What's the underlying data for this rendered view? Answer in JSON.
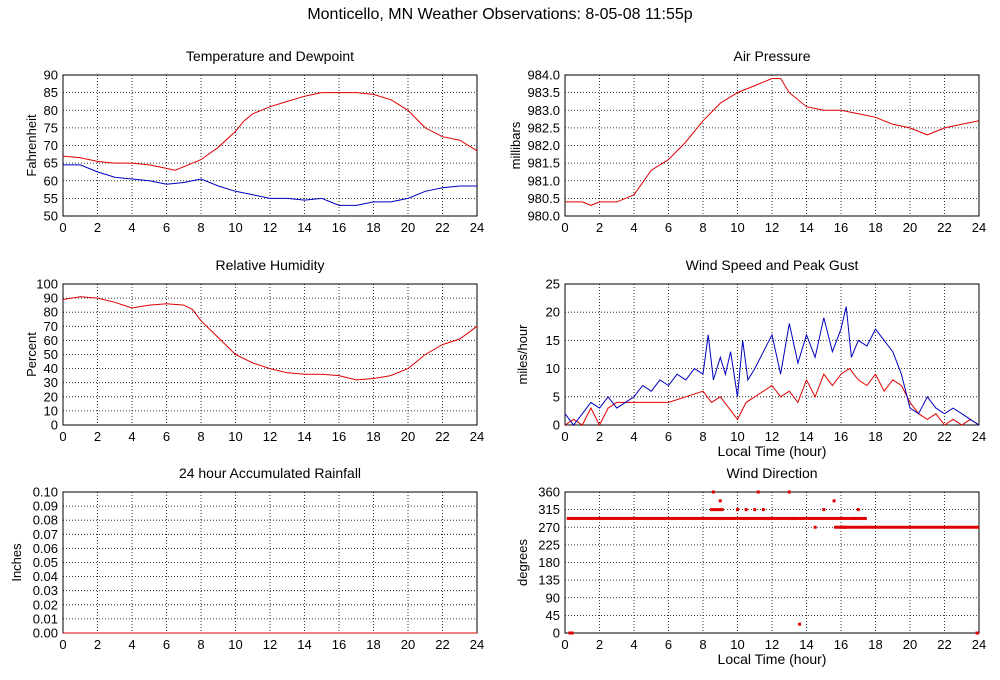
{
  "page": {
    "title": "Monticello, MN Weather Observations: 8-05-08 11:55p"
  },
  "colors": {
    "red": "#e00000",
    "blue": "#0000c0",
    "grid": "#000000"
  },
  "chart_data": [
    {
      "id": "temp",
      "type": "line",
      "title": "Temperature and Dewpoint",
      "xlabel": "",
      "ylabel": "Fahrenheit",
      "xlim": [
        0,
        24
      ],
      "ylim": [
        50,
        90
      ],
      "xticks": [
        0,
        2,
        4,
        6,
        8,
        10,
        12,
        14,
        16,
        18,
        20,
        22,
        24
      ],
      "yticks": [
        "50",
        "55",
        "60",
        "65",
        "70",
        "75",
        "80",
        "85",
        "90"
      ],
      "series": [
        {
          "color": "#e00000",
          "x": [
            0,
            1,
            2,
            3,
            4,
            5,
            6,
            6.5,
            7,
            8,
            9,
            10,
            10.5,
            11,
            12,
            13,
            14,
            15,
            16,
            17,
            18,
            19,
            20,
            20.5,
            21,
            22,
            23,
            24
          ],
          "values": [
            67,
            66.5,
            65.5,
            65,
            65,
            64.5,
            63.5,
            63,
            64,
            66,
            69.5,
            74,
            77,
            79,
            81,
            82.5,
            84,
            85,
            85,
            85,
            84.5,
            83,
            80,
            77.5,
            75,
            72.5,
            71.5,
            68.5
          ]
        },
        {
          "color": "#0000c0",
          "x": [
            0,
            1,
            2,
            3,
            4,
            5,
            6,
            7,
            8,
            9,
            10,
            11,
            12,
            13,
            14,
            15,
            16,
            17,
            18,
            19,
            20,
            21,
            22,
            23,
            24
          ],
          "values": [
            64.5,
            64.5,
            62.5,
            61,
            60.5,
            60,
            59,
            59.5,
            60.5,
            58.5,
            57,
            56,
            55,
            55,
            54.5,
            55,
            53,
            53,
            54,
            54,
            55,
            57,
            58,
            58.5,
            58.5
          ]
        }
      ]
    },
    {
      "id": "pressure",
      "type": "line",
      "title": "Air Pressure",
      "xlabel": "",
      "ylabel": "millibars",
      "xlim": [
        0,
        24
      ],
      "ylim": [
        980.0,
        984.0
      ],
      "xticks": [
        0,
        2,
        4,
        6,
        8,
        10,
        12,
        14,
        16,
        18,
        20,
        22,
        24
      ],
      "yticks": [
        "980.0",
        "980.5",
        "981.0",
        "981.5",
        "982.0",
        "982.5",
        "983.0",
        "983.5",
        "984.0"
      ],
      "series": [
        {
          "color": "#e00000",
          "x": [
            0,
            1,
            1.5,
            2,
            3,
            4,
            5,
            6,
            7,
            8,
            9,
            10,
            11,
            12,
            12.5,
            13,
            14,
            15,
            16,
            17,
            18,
            19,
            20,
            21,
            22,
            23,
            24
          ],
          "values": [
            980.4,
            980.4,
            980.3,
            980.4,
            980.4,
            980.6,
            981.3,
            981.6,
            982.1,
            982.7,
            983.2,
            983.5,
            983.7,
            983.9,
            983.9,
            983.5,
            983.1,
            983.0,
            983.0,
            982.9,
            982.8,
            982.6,
            982.5,
            982.3,
            982.5,
            982.6,
            982.7
          ]
        }
      ]
    },
    {
      "id": "humidity",
      "type": "line",
      "title": "Relative Humidity",
      "xlabel": "",
      "ylabel": "Percent",
      "xlim": [
        0,
        24
      ],
      "ylim": [
        0,
        100
      ],
      "xticks": [
        0,
        2,
        4,
        6,
        8,
        10,
        12,
        14,
        16,
        18,
        20,
        22,
        24
      ],
      "yticks": [
        "0",
        "10",
        "20",
        "30",
        "40",
        "50",
        "60",
        "70",
        "80",
        "90",
        "100"
      ],
      "series": [
        {
          "color": "#e00000",
          "x": [
            0,
            1,
            2,
            3,
            4,
            5,
            6,
            7,
            7.5,
            8,
            9,
            10,
            11,
            12,
            13,
            14,
            15,
            16,
            17,
            18,
            19,
            20,
            21,
            22,
            23,
            24
          ],
          "values": [
            89,
            91,
            90,
            87,
            83,
            85,
            86,
            85,
            82,
            74,
            62,
            50,
            44,
            40,
            37,
            36,
            36,
            35,
            32,
            33,
            35,
            40,
            50,
            57,
            61,
            70
          ]
        }
      ]
    },
    {
      "id": "wind",
      "type": "line",
      "title": "Wind Speed and Peak Gust",
      "xlabel": "Local Time (hour)",
      "ylabel": "miles/hour",
      "xlim": [
        0,
        24
      ],
      "ylim": [
        0,
        25
      ],
      "xticks": [
        0,
        2,
        4,
        6,
        8,
        10,
        12,
        14,
        16,
        18,
        20,
        22,
        24
      ],
      "yticks": [
        "0",
        "5",
        "10",
        "15",
        "20",
        "25"
      ],
      "series": [
        {
          "color": "#e00000",
          "x": [
            0,
            0.5,
            1,
            1.5,
            2,
            2.5,
            3,
            4,
            5,
            6,
            7,
            8,
            8.5,
            9,
            9.5,
            10,
            10.5,
            11,
            11.5,
            12,
            12.5,
            13,
            13.5,
            14,
            14.5,
            15,
            15.5,
            16,
            16.5,
            17,
            17.5,
            18,
            18.5,
            19,
            19.5,
            20,
            20.5,
            21,
            21.5,
            22,
            22.5,
            23,
            23.5,
            24
          ],
          "values": [
            0,
            1,
            0,
            3,
            0,
            3,
            4,
            4,
            4,
            4,
            5,
            6,
            4,
            5,
            3,
            1,
            4,
            5,
            6,
            7,
            5,
            6,
            4,
            8,
            5,
            9,
            7,
            9,
            10,
            8,
            7,
            9,
            6,
            8,
            7,
            4,
            2,
            1,
            2,
            0,
            1,
            0,
            1,
            0
          ]
        },
        {
          "color": "#0000c0",
          "x": [
            0,
            0.5,
            1,
            1.5,
            2,
            2.5,
            3,
            3.5,
            4,
            4.5,
            5,
            5.5,
            6,
            6.5,
            7,
            7.5,
            8,
            8.3,
            8.6,
            9,
            9.3,
            9.6,
            10,
            10.3,
            10.6,
            11,
            11.5,
            12,
            12.5,
            13,
            13.5,
            14,
            14.5,
            15,
            15.5,
            16,
            16.3,
            16.6,
            17,
            17.5,
            18,
            18.5,
            19,
            19.5,
            20,
            20.5,
            21,
            21.5,
            22,
            22.5,
            23,
            23.5,
            24
          ],
          "values": [
            2,
            0,
            2,
            4,
            3,
            5,
            3,
            4,
            5,
            7,
            6,
            8,
            7,
            9,
            8,
            10,
            9,
            16,
            8,
            12,
            9,
            13,
            5,
            15,
            8,
            10,
            13,
            16,
            9,
            18,
            11,
            16,
            12,
            19,
            13,
            17,
            21,
            12,
            15,
            14,
            17,
            15,
            13,
            9,
            3,
            2,
            5,
            3,
            2,
            3,
            2,
            1,
            0
          ]
        }
      ]
    },
    {
      "id": "rain",
      "type": "line",
      "title": "24 hour Accumulated Rainfall",
      "xlabel": "",
      "ylabel": "Inches",
      "xlim": [
        0,
        24
      ],
      "ylim": [
        0,
        0.1
      ],
      "xticks": [
        0,
        2,
        4,
        6,
        8,
        10,
        12,
        14,
        16,
        18,
        20,
        22,
        24
      ],
      "yticks": [
        "0.00",
        "0.01",
        "0.02",
        "0.03",
        "0.04",
        "0.05",
        "0.06",
        "0.07",
        "0.08",
        "0.09",
        "0.10"
      ],
      "series": [
        {
          "color": "#e00000",
          "x": [
            0,
            24
          ],
          "values": [
            0,
            0
          ]
        }
      ]
    },
    {
      "id": "winddir",
      "type": "scatter",
      "title": "Wind Direction",
      "xlabel": "Local Time (hour)",
      "ylabel": "degrees",
      "xlim": [
        0,
        24
      ],
      "ylim": [
        0,
        360
      ],
      "xticks": [
        0,
        2,
        4,
        6,
        8,
        10,
        12,
        14,
        16,
        18,
        20,
        22,
        24
      ],
      "yticks": [
        "0",
        "45",
        "90",
        "135",
        "180",
        "225",
        "270",
        "315",
        "360"
      ],
      "bands": [
        {
          "x0": 0.1,
          "x1": 17.5,
          "y": 292.5
        },
        {
          "x0": 17.5,
          "x1": 24,
          "y": 270
        },
        {
          "x0": 15.6,
          "x1": 17.5,
          "y": 270
        },
        {
          "x0": 8.4,
          "x1": 9.2,
          "y": 315
        },
        {
          "x0": 0.2,
          "x1": 0.5,
          "y": 0
        },
        {
          "x0": 23.8,
          "x1": 24,
          "y": 0
        }
      ],
      "series": [
        {
          "color": "#e00000",
          "x": [
            8.6,
            9.0,
            10.0,
            10.5,
            11.0,
            11.2,
            11.5,
            11.8,
            13.0,
            13.3,
            13.6,
            14.5,
            15.0,
            15.6,
            16.0,
            16.2,
            16.8,
            17.0
          ],
          "values": [
            360,
            337.5,
            315,
            315,
            315,
            360,
            315,
            292.5,
            360,
            292.5,
            22.5,
            270,
            315,
            337.5,
            292.5,
            270,
            292.5,
            315
          ]
        }
      ]
    }
  ]
}
